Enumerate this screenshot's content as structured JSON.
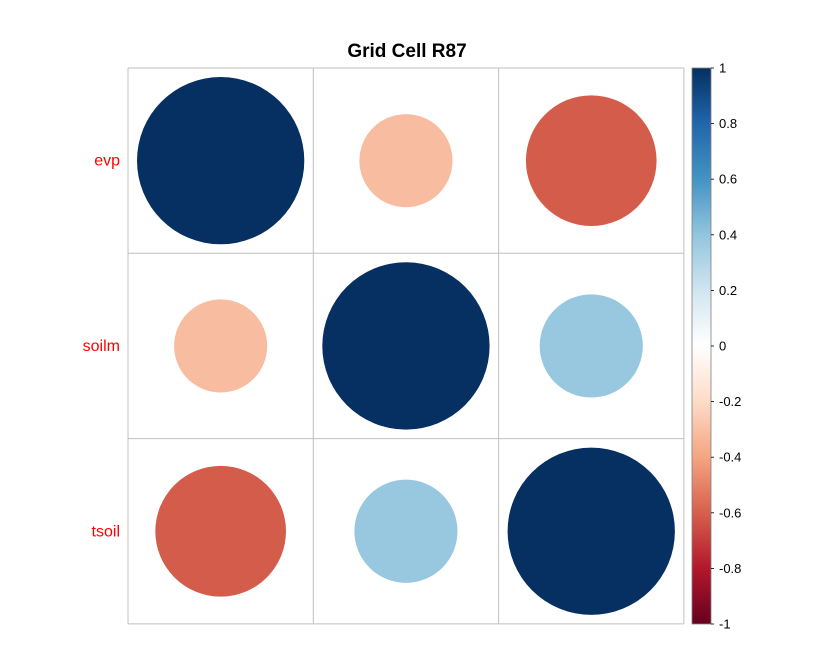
{
  "chart_data": {
    "type": "heatmap",
    "title": "Grid Cell R87",
    "variables": [
      "evp",
      "soilm",
      "tsoil"
    ],
    "matrix": [
      [
        1.0,
        -0.31,
        -0.61
      ],
      [
        -0.31,
        1.0,
        0.38
      ],
      [
        -0.61,
        0.38,
        1.0
      ]
    ],
    "colorbar": {
      "range": [
        -1,
        1
      ],
      "ticks": [
        "1",
        "0.8",
        "0.6",
        "0.4",
        "0.2",
        "0",
        "-0.2",
        "-0.4",
        "-0.6",
        "-0.8",
        "-1"
      ],
      "colors": [
        "#67001f",
        "#b2182b",
        "#d6604d",
        "#f4a582",
        "#fddbc7",
        "#ffffff",
        "#d1e5f0",
        "#92c5de",
        "#4393c3",
        "#2166ac",
        "#053061"
      ]
    },
    "glyph": "circle",
    "label_color": "#ff0000",
    "grid": true
  }
}
